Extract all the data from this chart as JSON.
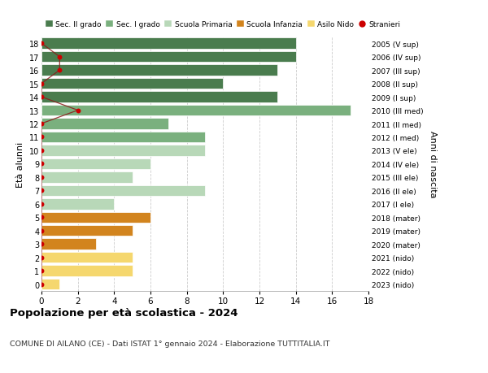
{
  "ages": [
    18,
    17,
    16,
    15,
    14,
    13,
    12,
    11,
    10,
    9,
    8,
    7,
    6,
    5,
    4,
    3,
    2,
    1,
    0
  ],
  "right_labels": [
    "2005 (V sup)",
    "2006 (IV sup)",
    "2007 (III sup)",
    "2008 (II sup)",
    "2009 (I sup)",
    "2010 (III med)",
    "2011 (II med)",
    "2012 (I med)",
    "2013 (V ele)",
    "2014 (IV ele)",
    "2015 (III ele)",
    "2016 (II ele)",
    "2017 (I ele)",
    "2018 (mater)",
    "2019 (mater)",
    "2020 (mater)",
    "2021 (nido)",
    "2022 (nido)",
    "2023 (nido)"
  ],
  "bar_values": [
    14,
    14,
    13,
    10,
    13,
    17,
    7,
    9,
    9,
    6,
    5,
    9,
    4,
    6,
    5,
    3,
    5,
    5,
    1
  ],
  "bar_colors": [
    "#4a7c4e",
    "#4a7c4e",
    "#4a7c4e",
    "#4a7c4e",
    "#4a7c4e",
    "#7ab07e",
    "#7ab07e",
    "#7ab07e",
    "#b8d8b8",
    "#b8d8b8",
    "#b8d8b8",
    "#b8d8b8",
    "#b8d8b8",
    "#d2841e",
    "#d2841e",
    "#d2841e",
    "#f5d76e",
    "#f5d76e",
    "#f5d76e"
  ],
  "stranieri_x": [
    0,
    1,
    1,
    0,
    0,
    2,
    0,
    0,
    0,
    0,
    0,
    0,
    0,
    0,
    0,
    0,
    0,
    0,
    0
  ],
  "legend_labels": [
    "Sec. II grado",
    "Sec. I grado",
    "Scuola Primaria",
    "Scuola Infanzia",
    "Asilo Nido",
    "Stranieri"
  ],
  "legend_colors": [
    "#4a7c4e",
    "#7ab07e",
    "#b8d8b8",
    "#d2841e",
    "#f5d76e",
    "#cc0000"
  ],
  "ylabel": "Età alunni",
  "ylabel_right": "Anni di nascita",
  "title": "Popolazione per età scolastica - 2024",
  "subtitle": "COMUNE DI AILANO (CE) - Dati ISTAT 1° gennaio 2024 - Elaborazione TUTTITALIA.IT",
  "background_color": "#ffffff"
}
